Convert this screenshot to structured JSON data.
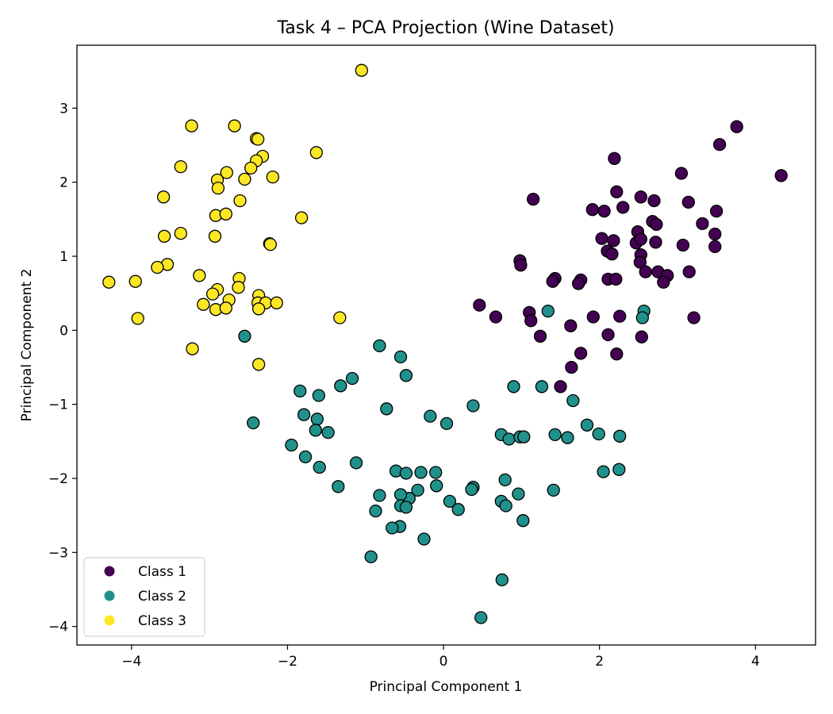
{
  "chart_data": {
    "type": "scatter",
    "title": "Task 4 – PCA Projection (Wine Dataset)",
    "xlabel": "Principal Component 1",
    "ylabel": "Principal Component 2",
    "xlim": [
      -4.7,
      4.77
    ],
    "ylim": [
      -4.25,
      3.85
    ],
    "xticks": [
      -4,
      -2,
      0,
      2,
      4
    ],
    "yticks": [
      -4,
      -3,
      -2,
      -1,
      0,
      1,
      2,
      3
    ],
    "xtick_labels": [
      "−4",
      "−2",
      "0",
      "2",
      "4"
    ],
    "ytick_labels": [
      "−4",
      "−3",
      "−2",
      "−1",
      "0",
      "1",
      "2",
      "3"
    ],
    "grid": false,
    "legend_position": "lower-left",
    "series": [
      {
        "name": "Class 1",
        "color": "#440154",
        "points": [
          [
            3.76,
            2.75
          ],
          [
            3.54,
            2.51
          ],
          [
            4.33,
            2.09
          ],
          [
            3.05,
            2.12
          ],
          [
            2.19,
            2.32
          ],
          [
            2.22,
            1.87
          ],
          [
            2.53,
            1.8
          ],
          [
            2.7,
            1.75
          ],
          [
            1.15,
            1.77
          ],
          [
            3.14,
            1.73
          ],
          [
            2.3,
            1.66
          ],
          [
            1.91,
            1.63
          ],
          [
            2.06,
            1.61
          ],
          [
            3.5,
            1.61
          ],
          [
            2.68,
            1.47
          ],
          [
            2.73,
            1.43
          ],
          [
            3.32,
            1.44
          ],
          [
            2.49,
            1.33
          ],
          [
            3.48,
            1.3
          ],
          [
            2.03,
            1.24
          ],
          [
            2.18,
            1.21
          ],
          [
            2.47,
            1.18
          ],
          [
            2.72,
            1.19
          ],
          [
            3.07,
            1.15
          ],
          [
            3.48,
            1.13
          ],
          [
            2.53,
            1.23
          ],
          [
            2.1,
            1.07
          ],
          [
            2.16,
            1.03
          ],
          [
            2.53,
            1.02
          ],
          [
            2.52,
            0.92
          ],
          [
            0.98,
            0.94
          ],
          [
            0.99,
            0.88
          ],
          [
            2.59,
            0.79
          ],
          [
            2.75,
            0.79
          ],
          [
            2.87,
            0.74
          ],
          [
            3.15,
            0.79
          ],
          [
            2.82,
            0.65
          ],
          [
            2.11,
            0.69
          ],
          [
            2.21,
            0.69
          ],
          [
            1.76,
            0.68
          ],
          [
            1.73,
            0.63
          ],
          [
            1.43,
            0.7
          ],
          [
            1.4,
            0.66
          ],
          [
            0.46,
            0.34
          ],
          [
            0.67,
            0.18
          ],
          [
            1.1,
            0.24
          ],
          [
            1.12,
            0.13
          ],
          [
            1.92,
            0.18
          ],
          [
            2.26,
            0.19
          ],
          [
            3.21,
            0.17
          ],
          [
            1.63,
            0.06
          ],
          [
            1.24,
            -0.08
          ],
          [
            2.11,
            -0.06
          ],
          [
            2.54,
            -0.09
          ],
          [
            1.76,
            -0.31
          ],
          [
            2.22,
            -0.32
          ],
          [
            1.64,
            -0.5
          ],
          [
            1.5,
            -0.76
          ]
        ]
      },
      {
        "name": "Class 2",
        "color": "#21918c",
        "points": [
          [
            2.57,
            0.26
          ],
          [
            2.55,
            0.17
          ],
          [
            1.34,
            0.26
          ],
          [
            -2.55,
            -0.08
          ],
          [
            -0.82,
            -0.21
          ],
          [
            -0.55,
            -0.36
          ],
          [
            -0.48,
            -0.61
          ],
          [
            -1.17,
            -0.65
          ],
          [
            -1.32,
            -0.75
          ],
          [
            0.9,
            -0.76
          ],
          [
            1.26,
            -0.76
          ],
          [
            -1.84,
            -0.82
          ],
          [
            -1.6,
            -0.88
          ],
          [
            1.66,
            -0.95
          ],
          [
            -0.73,
            -1.06
          ],
          [
            0.38,
            -1.02
          ],
          [
            -1.79,
            -1.14
          ],
          [
            -0.17,
            -1.16
          ],
          [
            -1.62,
            -1.2
          ],
          [
            0.04,
            -1.26
          ],
          [
            -2.44,
            -1.25
          ],
          [
            -1.64,
            -1.35
          ],
          [
            -1.48,
            -1.38
          ],
          [
            1.84,
            -1.28
          ],
          [
            0.74,
            -1.41
          ],
          [
            0.84,
            -1.47
          ],
          [
            0.98,
            -1.44
          ],
          [
            1.03,
            -1.44
          ],
          [
            1.43,
            -1.41
          ],
          [
            1.59,
            -1.45
          ],
          [
            1.99,
            -1.4
          ],
          [
            2.26,
            -1.43
          ],
          [
            -1.95,
            -1.55
          ],
          [
            -1.77,
            -1.71
          ],
          [
            -1.12,
            -1.79
          ],
          [
            -1.59,
            -1.85
          ],
          [
            -0.61,
            -1.9
          ],
          [
            -0.48,
            -1.93
          ],
          [
            -0.29,
            -1.92
          ],
          [
            -0.1,
            -1.92
          ],
          [
            2.05,
            -1.91
          ],
          [
            2.25,
            -1.88
          ],
          [
            0.79,
            -2.02
          ],
          [
            -1.35,
            -2.11
          ],
          [
            -0.09,
            -2.1
          ],
          [
            0.38,
            -2.12
          ],
          [
            0.36,
            -2.15
          ],
          [
            1.41,
            -2.16
          ],
          [
            -0.33,
            -2.16
          ],
          [
            -0.44,
            -2.27
          ],
          [
            -0.82,
            -2.23
          ],
          [
            -0.55,
            -2.22
          ],
          [
            0.96,
            -2.21
          ],
          [
            0.74,
            -2.31
          ],
          [
            0.08,
            -2.31
          ],
          [
            -0.55,
            -2.37
          ],
          [
            -0.48,
            -2.39
          ],
          [
            0.8,
            -2.37
          ],
          [
            0.19,
            -2.42
          ],
          [
            -0.87,
            -2.44
          ],
          [
            1.02,
            -2.57
          ],
          [
            -0.56,
            -2.65
          ],
          [
            -0.66,
            -2.67
          ],
          [
            -0.25,
            -2.82
          ],
          [
            -0.93,
            -3.06
          ],
          [
            0.75,
            -3.37
          ],
          [
            0.48,
            -3.88
          ]
        ]
      },
      {
        "name": "Class 3",
        "color": "#fde725",
        "points": [
          [
            -1.05,
            3.51
          ],
          [
            -3.23,
            2.76
          ],
          [
            -2.68,
            2.76
          ],
          [
            -2.4,
            2.59
          ],
          [
            -2.38,
            2.58
          ],
          [
            -1.63,
            2.4
          ],
          [
            -2.32,
            2.35
          ],
          [
            -2.4,
            2.29
          ],
          [
            -3.37,
            2.21
          ],
          [
            -2.47,
            2.19
          ],
          [
            -2.78,
            2.13
          ],
          [
            -2.19,
            2.07
          ],
          [
            -2.9,
            2.03
          ],
          [
            -2.55,
            2.04
          ],
          [
            -2.89,
            1.92
          ],
          [
            -3.59,
            1.8
          ],
          [
            -2.61,
            1.75
          ],
          [
            -2.92,
            1.55
          ],
          [
            -2.79,
            1.57
          ],
          [
            -1.82,
            1.52
          ],
          [
            -3.58,
            1.27
          ],
          [
            -3.37,
            1.31
          ],
          [
            -2.93,
            1.27
          ],
          [
            -2.23,
            1.17
          ],
          [
            -2.22,
            1.16
          ],
          [
            -3.54,
            0.89
          ],
          [
            -3.67,
            0.85
          ],
          [
            -3.13,
            0.74
          ],
          [
            -2.62,
            0.7
          ],
          [
            -2.63,
            0.58
          ],
          [
            -2.9,
            0.55
          ],
          [
            -2.96,
            0.49
          ],
          [
            -2.37,
            0.47
          ],
          [
            -4.29,
            0.65
          ],
          [
            -3.95,
            0.66
          ],
          [
            -2.75,
            0.41
          ],
          [
            -2.38,
            0.37
          ],
          [
            -3.08,
            0.35
          ],
          [
            -2.28,
            0.37
          ],
          [
            -2.14,
            0.37
          ],
          [
            -2.92,
            0.28
          ],
          [
            -2.79,
            0.3
          ],
          [
            -2.37,
            0.29
          ],
          [
            -3.92,
            0.16
          ],
          [
            -1.33,
            0.17
          ],
          [
            -3.22,
            -0.25
          ],
          [
            -2.37,
            -0.46
          ]
        ]
      }
    ]
  }
}
